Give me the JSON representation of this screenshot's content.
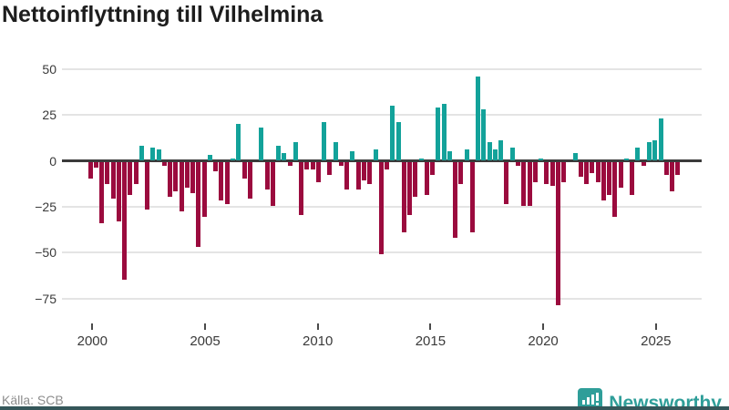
{
  "title": "Nettoinflyttning till Vilhelmina",
  "source": "Källa: SCB",
  "brand": {
    "name": "Newsworthy"
  },
  "chart_data": {
    "type": "bar",
    "title": "Nettoinflyttning till Vilhelmina",
    "xlabel": "",
    "ylabel": "",
    "frequency": "quarterly",
    "start_quarter": "1999Q4",
    "end_quarter": "2025Q3",
    "x_tick_years": [
      2000,
      2005,
      2010,
      2015,
      2020,
      2025
    ],
    "x_tick_labels": [
      "2000",
      "2005",
      "2010",
      "2015",
      "2020",
      "2025"
    ],
    "y_ticks": [
      50,
      25,
      0,
      -25,
      -50,
      -75
    ],
    "y_tick_labels": [
      "50",
      "25",
      "0",
      "−25",
      "−50",
      "−75"
    ],
    "ylim": [
      -85,
      55
    ],
    "grid": true,
    "legend": false,
    "colors": {
      "positive": "#13a29a",
      "negative": "#9b0b3e",
      "axis": "#3b3b3b",
      "gridline": "#e4e4e4"
    },
    "values": [
      -9,
      -3,
      -33,
      -12,
      -20,
      -32,
      -64,
      -18,
      -12,
      8,
      -26,
      7,
      6,
      -2,
      -19,
      -16,
      -27,
      -14,
      -17,
      -46,
      -30,
      3,
      -5,
      -21,
      -23,
      1,
      20,
      -9,
      -20,
      0,
      18,
      -15,
      -24,
      8,
      4,
      -2,
      10,
      -29,
      -4,
      -4,
      -11,
      21,
      -7,
      10,
      -2,
      -15,
      5,
      -15,
      -10,
      -12,
      6,
      -50,
      -4,
      30,
      21,
      -38,
      -29,
      -19,
      1,
      -18,
      -7,
      29,
      31,
      5,
      -41,
      -12,
      6,
      -38,
      46,
      28,
      10,
      6,
      11,
      -23,
      7,
      -2,
      -24,
      -24,
      -11,
      1,
      -12,
      -13,
      -78,
      -11,
      0,
      4,
      -8,
      -12,
      -6,
      -11,
      -21,
      -18,
      -30,
      -14,
      1,
      -18,
      7,
      -2,
      10,
      11,
      23,
      -7,
      -16,
      -7
    ]
  }
}
